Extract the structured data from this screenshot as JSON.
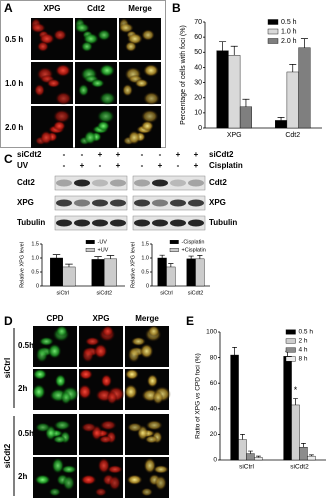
{
  "panel_labels": [
    "A",
    "B",
    "C",
    "D",
    "E"
  ],
  "panel_a": {
    "columns": [
      "XPG",
      "Cdt2",
      "Merge"
    ],
    "rows": [
      "0.5 h",
      "1.0 h",
      "2.0 h"
    ]
  },
  "blot": {
    "left": {
      "conditions": [
        {
          "label": "siCdt2",
          "signs": [
            "-",
            "-",
            "+",
            "+"
          ]
        },
        {
          "label": "UV",
          "signs": [
            "-",
            "+",
            "-",
            "+"
          ]
        }
      ],
      "proteins": [
        "Cdt2",
        "XPG",
        "Tubulin"
      ]
    },
    "right": {
      "conditions": [
        {
          "label": "siCdt2",
          "signs": [
            "-",
            "-",
            "+",
            "+"
          ]
        },
        {
          "label": "Cisplatin",
          "signs": [
            "-",
            "+",
            "-",
            "+"
          ]
        }
      ],
      "proteins": [
        "Cdt2",
        "XPG",
        "Tubulin"
      ]
    }
  },
  "panel_d": {
    "columns": [
      "CPD",
      "XPG",
      "Merge"
    ],
    "groups": [
      {
        "label": "siCtrl",
        "rows": [
          "0.5h",
          "2h"
        ]
      },
      {
        "label": "siCdt2",
        "rows": [
          "0.5h",
          "2h"
        ]
      }
    ]
  },
  "chart_data": [
    {
      "type": "bar",
      "ylabel": "Percentage of cells with foci (%)",
      "categories": [
        "XPG",
        "Cdt2"
      ],
      "series": [
        {
          "name": "0.5 h",
          "color": "#000000",
          "values": [
            51,
            5
          ],
          "errors": [
            6,
            2
          ]
        },
        {
          "name": "1.0 h",
          "color": "#d9d9d9",
          "values": [
            48,
            37
          ],
          "errors": [
            6,
            5
          ]
        },
        {
          "name": "2.0 h",
          "color": "#7f7f7f",
          "values": [
            14,
            53
          ],
          "errors": [
            5,
            6
          ]
        }
      ],
      "ylim": [
        0,
        70
      ],
      "yticks": [
        0,
        10,
        20,
        30,
        40,
        50,
        60,
        70
      ],
      "legend": "upper right"
    },
    {
      "type": "bar",
      "ylabel": "Relative XPG level",
      "categories": [
        "siCtrl",
        "siCdt2"
      ],
      "series": [
        {
          "name": "-UV",
          "color": "#000000",
          "values": [
            1.0,
            0.95
          ],
          "errors": [
            0.12,
            0.1
          ]
        },
        {
          "name": "+UV",
          "color": "#cccccc",
          "values": [
            0.68,
            0.97
          ],
          "errors": [
            0.1,
            0.12
          ]
        }
      ],
      "ylim": [
        0,
        1.5
      ],
      "yticks": [
        0,
        0.5,
        {
          "value": 1,
          "label": "1.0"
        },
        1.5
      ],
      "legend": "upper right"
    },
    {
      "type": "bar",
      "ylabel": "Relative XPG level",
      "categories": [
        "siCtrl",
        "siCdt2"
      ],
      "series": [
        {
          "name": "-Cisplatin",
          "color": "#000000",
          "values": [
            1.0,
            0.97
          ],
          "errors": [
            0.1,
            0.1
          ]
        },
        {
          "name": "+Cisplatin",
          "color": "#cccccc",
          "values": [
            0.68,
            0.97
          ],
          "errors": [
            0.12,
            0.12
          ]
        }
      ],
      "ylim": [
        0,
        1.5
      ],
      "yticks": [
        0,
        0.5,
        {
          "value": 1,
          "label": "1.0"
        },
        1.5
      ],
      "legend": "upper right"
    },
    {
      "type": "bar",
      "ylabel": "Ratio of XPG vs CPD foci (%)",
      "categories": [
        "siCtrl",
        "siCdt2"
      ],
      "series": [
        {
          "name": "0.5 h",
          "color": "#000000",
          "values": [
            82,
            81
          ],
          "errors": [
            6,
            4
          ]
        },
        {
          "name": "2 h",
          "color": "#cfcfcf",
          "values": [
            16,
            43
          ],
          "errors": [
            4,
            5
          ]
        },
        {
          "name": "4 h",
          "color": "#8c8c8c",
          "values": [
            5,
            10
          ],
          "errors": [
            2,
            3
          ]
        },
        {
          "name": "8 h",
          "color": "#ececec",
          "values": [
            2,
            3
          ],
          "errors": [
            1,
            1
          ]
        }
      ],
      "ylim": [
        0,
        100
      ],
      "yticks": [
        0,
        20,
        40,
        60,
        80,
        100
      ],
      "legend": "upper right",
      "annotation": "*"
    }
  ]
}
